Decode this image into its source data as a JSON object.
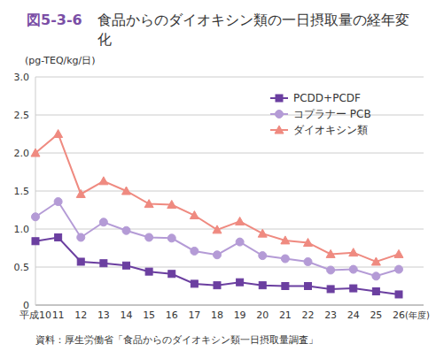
{
  "chart_data": {
    "type": "line",
    "figure_label": "図5-3-6",
    "title": "食品からのダイオキシン類の一日摂取量の経年変化",
    "y_label": "(pg-TEQ/kg/日)",
    "x_label": "(年度)",
    "source": "資料：厚生労働省「食品からのダイオキシン類一日摂取量調査」",
    "categories": [
      "平成10",
      "11",
      "12",
      "13",
      "14",
      "15",
      "16",
      "17",
      "18",
      "19",
      "20",
      "21",
      "22",
      "23",
      "24",
      "25",
      "26"
    ],
    "series": [
      {
        "name": "PCDD+PCDF",
        "color": "#6b3fa0",
        "marker": "square",
        "values": [
          0.84,
          0.89,
          0.57,
          0.55,
          0.52,
          0.44,
          0.41,
          0.28,
          0.26,
          0.3,
          0.26,
          0.25,
          0.25,
          0.21,
          0.22,
          0.18,
          0.14
        ]
      },
      {
        "name": "コプラナー PCB",
        "color": "#b49bd6",
        "marker": "circle",
        "values": [
          1.16,
          1.36,
          0.89,
          1.09,
          0.98,
          0.89,
          0.88,
          0.71,
          0.66,
          0.83,
          0.65,
          0.61,
          0.57,
          0.46,
          0.47,
          0.38,
          0.47
        ]
      },
      {
        "name": "ダイオキシン類",
        "color": "#ef8a80",
        "marker": "triangle",
        "values": [
          2.0,
          2.25,
          1.46,
          1.63,
          1.5,
          1.33,
          1.32,
          1.18,
          0.99,
          1.1,
          0.94,
          0.85,
          0.82,
          0.67,
          0.69,
          0.57,
          0.67
        ]
      }
    ],
    "ylim": [
      0,
      3.0
    ],
    "yticks": [
      0,
      0.5,
      {
        "value": 1.0,
        "label": "1.0"
      },
      1.5,
      {
        "value": 2.0,
        "label": "2.0"
      },
      2.5,
      {
        "value": 3.0,
        "label": "3.0"
      }
    ],
    "grid": true,
    "legend": "upper right"
  }
}
